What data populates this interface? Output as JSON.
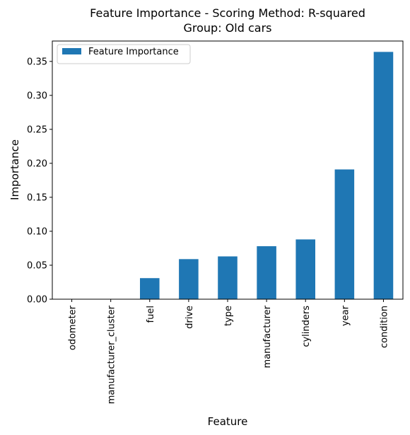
{
  "chart_data": {
    "type": "bar",
    "title": "Feature Importance - Scoring Method: R-squared",
    "subtitle": "Group: Old cars",
    "xlabel": "Feature",
    "ylabel": "Importance",
    "categories": [
      "odometer",
      "manufacturer_cluster",
      "fuel",
      "drive",
      "type",
      "manufacturer",
      "cylinders",
      "year",
      "condition"
    ],
    "series": [
      {
        "name": "Feature Importance",
        "values": [
          0.0,
          0.0,
          0.031,
          0.059,
          0.063,
          0.078,
          0.088,
          0.191,
          0.364
        ],
        "color": "#1f77b4"
      }
    ],
    "ylim": [
      0,
      0.38
    ],
    "yticks": [
      0.0,
      0.05,
      0.1,
      0.15,
      0.2,
      0.25,
      0.3,
      0.35
    ],
    "ytick_labels": [
      "0.00",
      "0.05",
      "0.10",
      "0.15",
      "0.20",
      "0.25",
      "0.30",
      "0.35"
    ],
    "grid": false,
    "legend_position": "top-left"
  }
}
